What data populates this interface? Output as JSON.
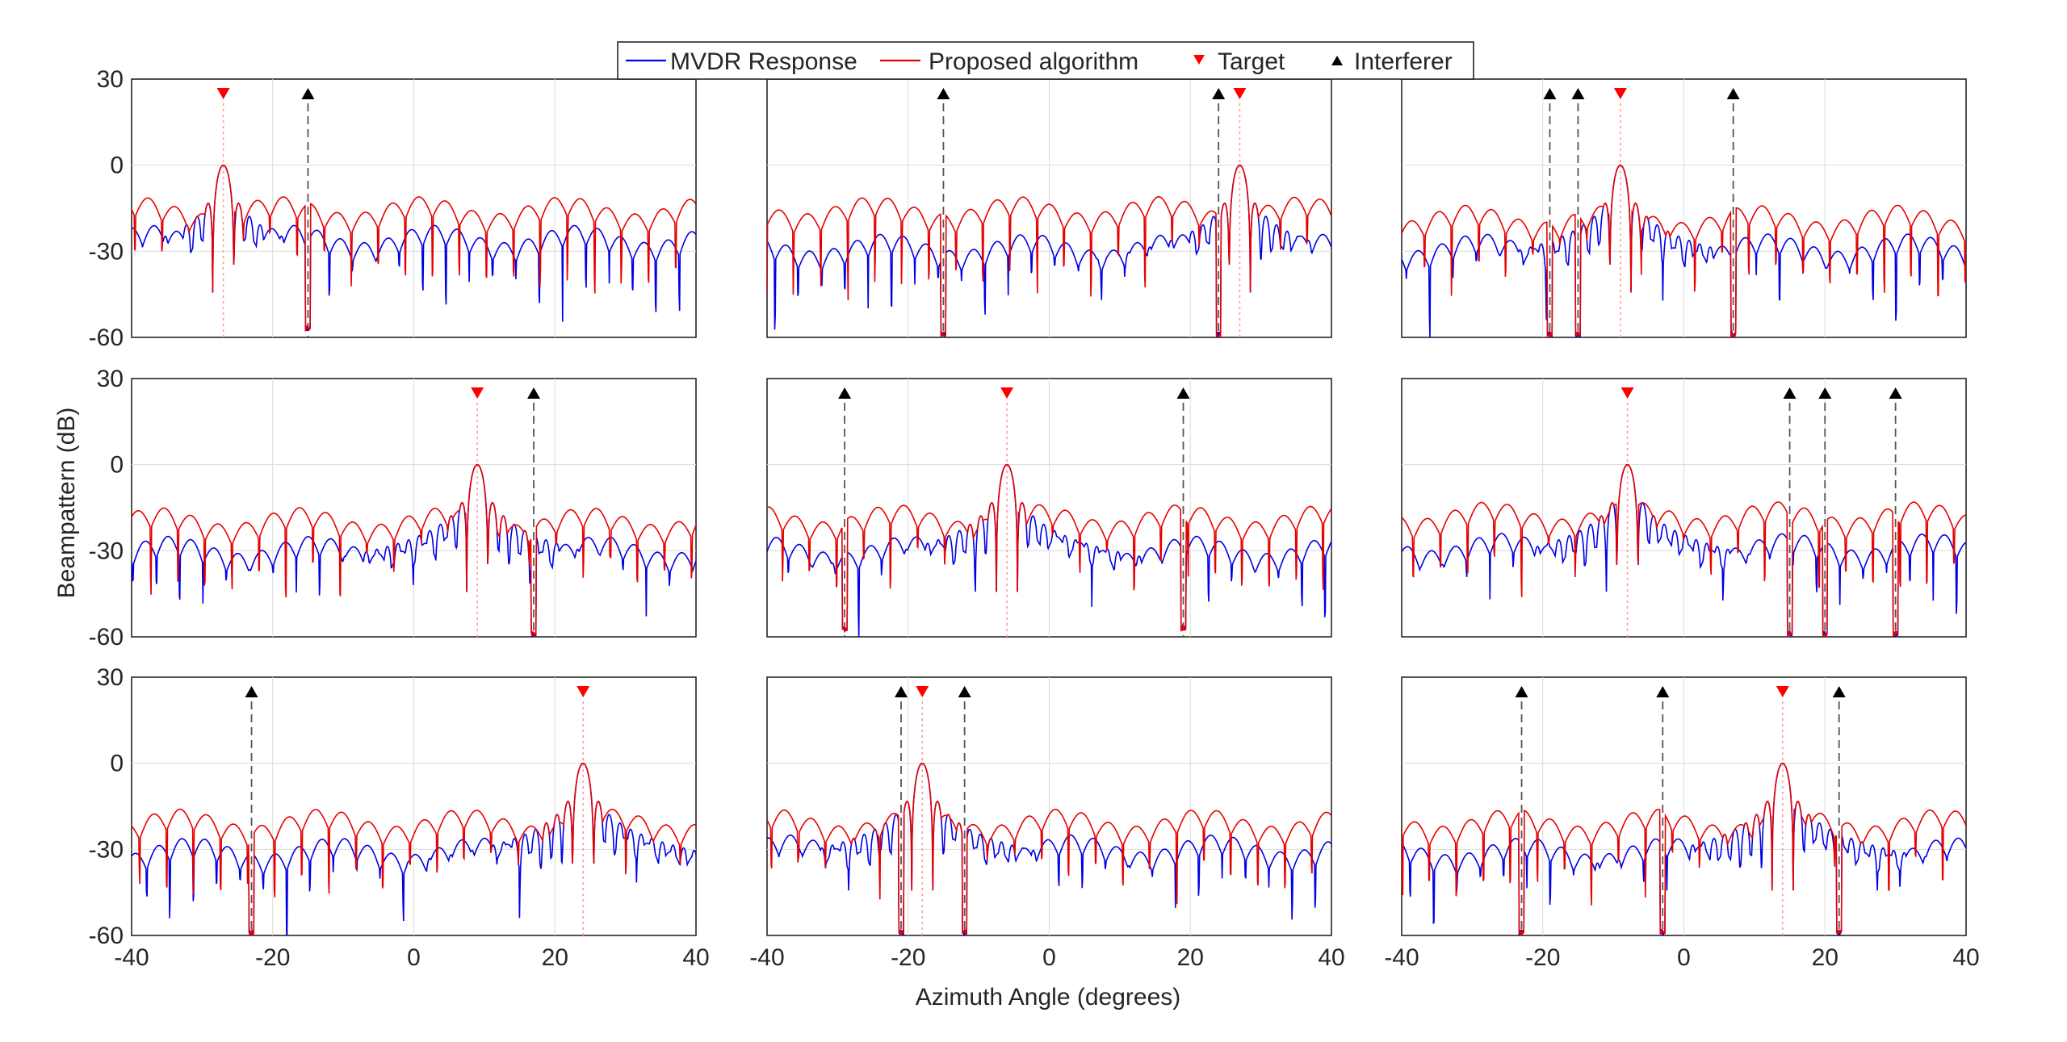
{
  "chart_data": {
    "type": "line",
    "layout": "3x3 grid of subplots",
    "xlabel": "Azimuth Angle (degrees)",
    "ylabel": "Beampattern (dB)",
    "xlim": [
      -40,
      40
    ],
    "ylim": [
      -60,
      30
    ],
    "xticks": [
      "-40",
      "-20",
      "0",
      "20",
      "40"
    ],
    "yticks": [
      "30",
      "0",
      "-30",
      "-60"
    ],
    "grid": true,
    "legend": {
      "placement": "top-center",
      "entries": [
        {
          "label": "MVDR Response",
          "color": "#0000e6",
          "kind": "line"
        },
        {
          "label": "Proposed algorithm",
          "color": "#e60000",
          "kind": "line"
        },
        {
          "label": "Target",
          "color": "#ff0000",
          "kind": "triangle-down"
        },
        {
          "label": "Interferer",
          "color": "#000000",
          "kind": "triangle-up"
        }
      ]
    },
    "series_names": [
      "MVDR Response",
      "Proposed algorithm"
    ],
    "series_colors": {
      "mvdr": "#0000e6",
      "proposed": "#e60000"
    },
    "subplots": [
      {
        "row": 1,
        "col": 1,
        "target": -27,
        "interferers": [
          -15
        ],
        "mvdr_sidelobe_dB": -27,
        "proposed_sidelobe_dB": -17,
        "null_depth_dB": -58
      },
      {
        "row": 1,
        "col": 2,
        "target": 27,
        "interferers": [
          -15,
          24
        ],
        "mvdr_sidelobe_dB": -30,
        "proposed_sidelobe_dB": -17,
        "null_depth_dB": -60
      },
      {
        "row": 1,
        "col": 3,
        "target": -9,
        "interferers": [
          -19,
          -15,
          7
        ],
        "mvdr_sidelobe_dB": -30,
        "proposed_sidelobe_dB": -20,
        "null_depth_dB": -60
      },
      {
        "row": 2,
        "col": 1,
        "target": 9,
        "interferers": [
          17
        ],
        "mvdr_sidelobe_dB": -31,
        "proposed_sidelobe_dB": -21,
        "null_depth_dB": -60
      },
      {
        "row": 2,
        "col": 2,
        "target": -6,
        "interferers": [
          -29,
          19
        ],
        "mvdr_sidelobe_dB": -31,
        "proposed_sidelobe_dB": -20,
        "null_depth_dB": -58
      },
      {
        "row": 2,
        "col": 3,
        "target": -8,
        "interferers": [
          15,
          20,
          30
        ],
        "mvdr_sidelobe_dB": -30,
        "proposed_sidelobe_dB": -19,
        "null_depth_dB": -60
      },
      {
        "row": 3,
        "col": 1,
        "target": 24,
        "interferers": [
          -23
        ],
        "mvdr_sidelobe_dB": -32,
        "proposed_sidelobe_dB": -22,
        "null_depth_dB": -60
      },
      {
        "row": 3,
        "col": 2,
        "target": -18,
        "interferers": [
          -21,
          -12
        ],
        "mvdr_sidelobe_dB": -31,
        "proposed_sidelobe_dB": -22,
        "null_depth_dB": -60
      },
      {
        "row": 3,
        "col": 3,
        "target": 14,
        "interferers": [
          -23,
          -3,
          22
        ],
        "mvdr_sidelobe_dB": -32,
        "proposed_sidelobe_dB": -22,
        "null_depth_dB": -60
      }
    ],
    "main_lobe_peak_dB": 0
  }
}
